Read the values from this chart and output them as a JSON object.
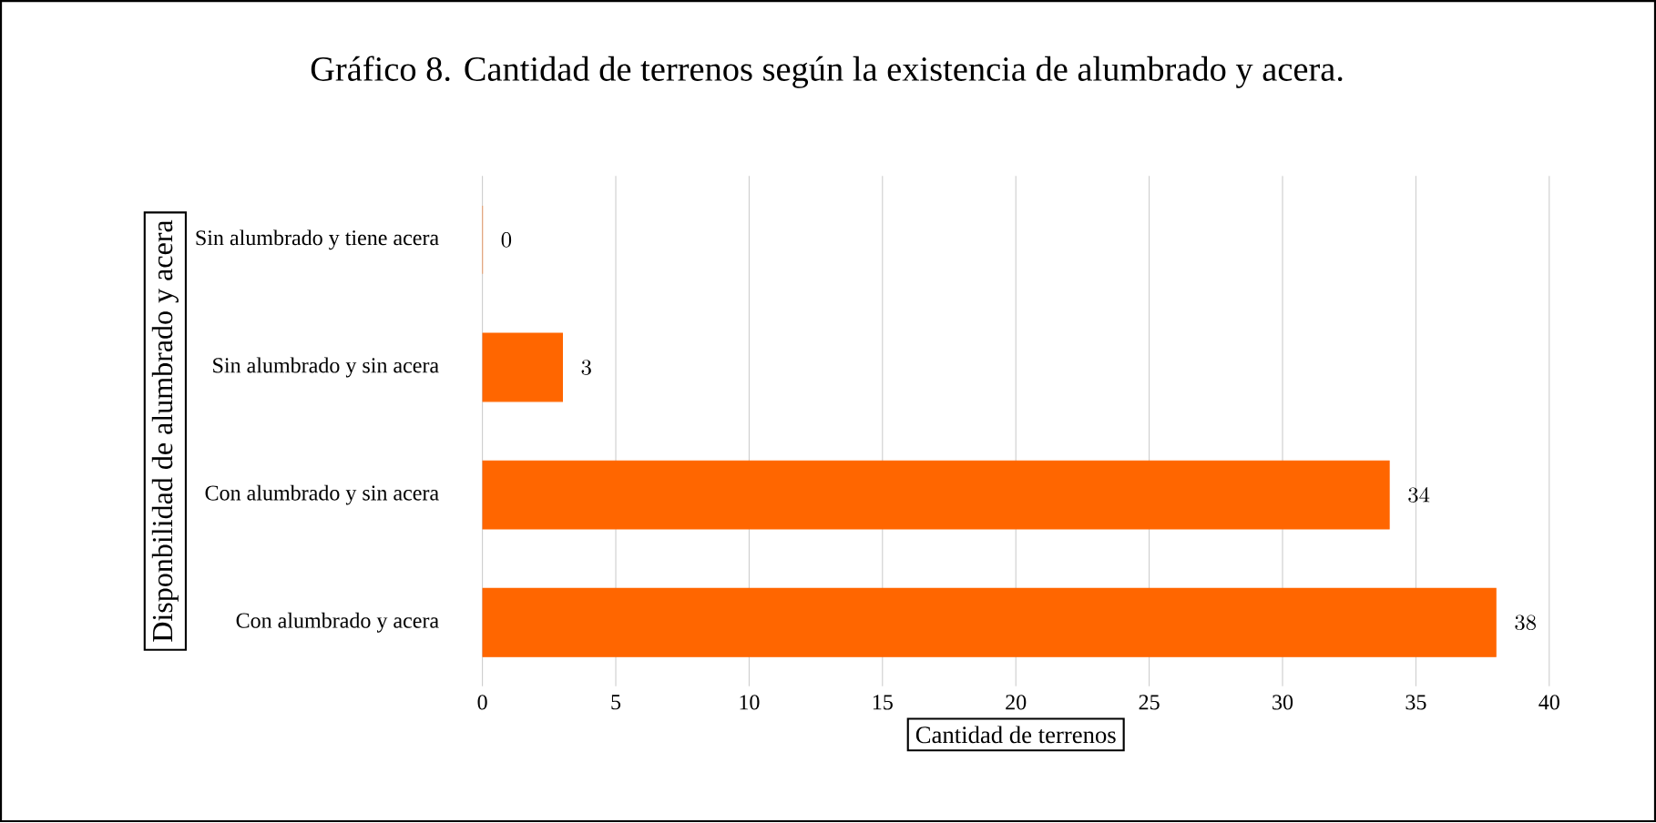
{
  "chart_data": {
    "type": "bar",
    "orientation": "horizontal",
    "title": "Gráfico  8. Cantidad de terrenos según la existencia de alumbrado  y acera.",
    "xlabel": "Cantidad de terrenos",
    "ylabel": "Disponbilidad de alumbrado y acera",
    "categories": [
      "Sin alumbrado y tiene acera",
      "Sin alumbrado y sin acera",
      "Con alumbrado y sin acera",
      "Con alumbrado y acera"
    ],
    "values": [
      0,
      3,
      34,
      38
    ],
    "color": "#ff6600",
    "xlim": [
      0,
      40
    ],
    "xticks": [
      0,
      5,
      10,
      15,
      20,
      25,
      30,
      35,
      40
    ],
    "grid": "x",
    "data_labels": true
  }
}
